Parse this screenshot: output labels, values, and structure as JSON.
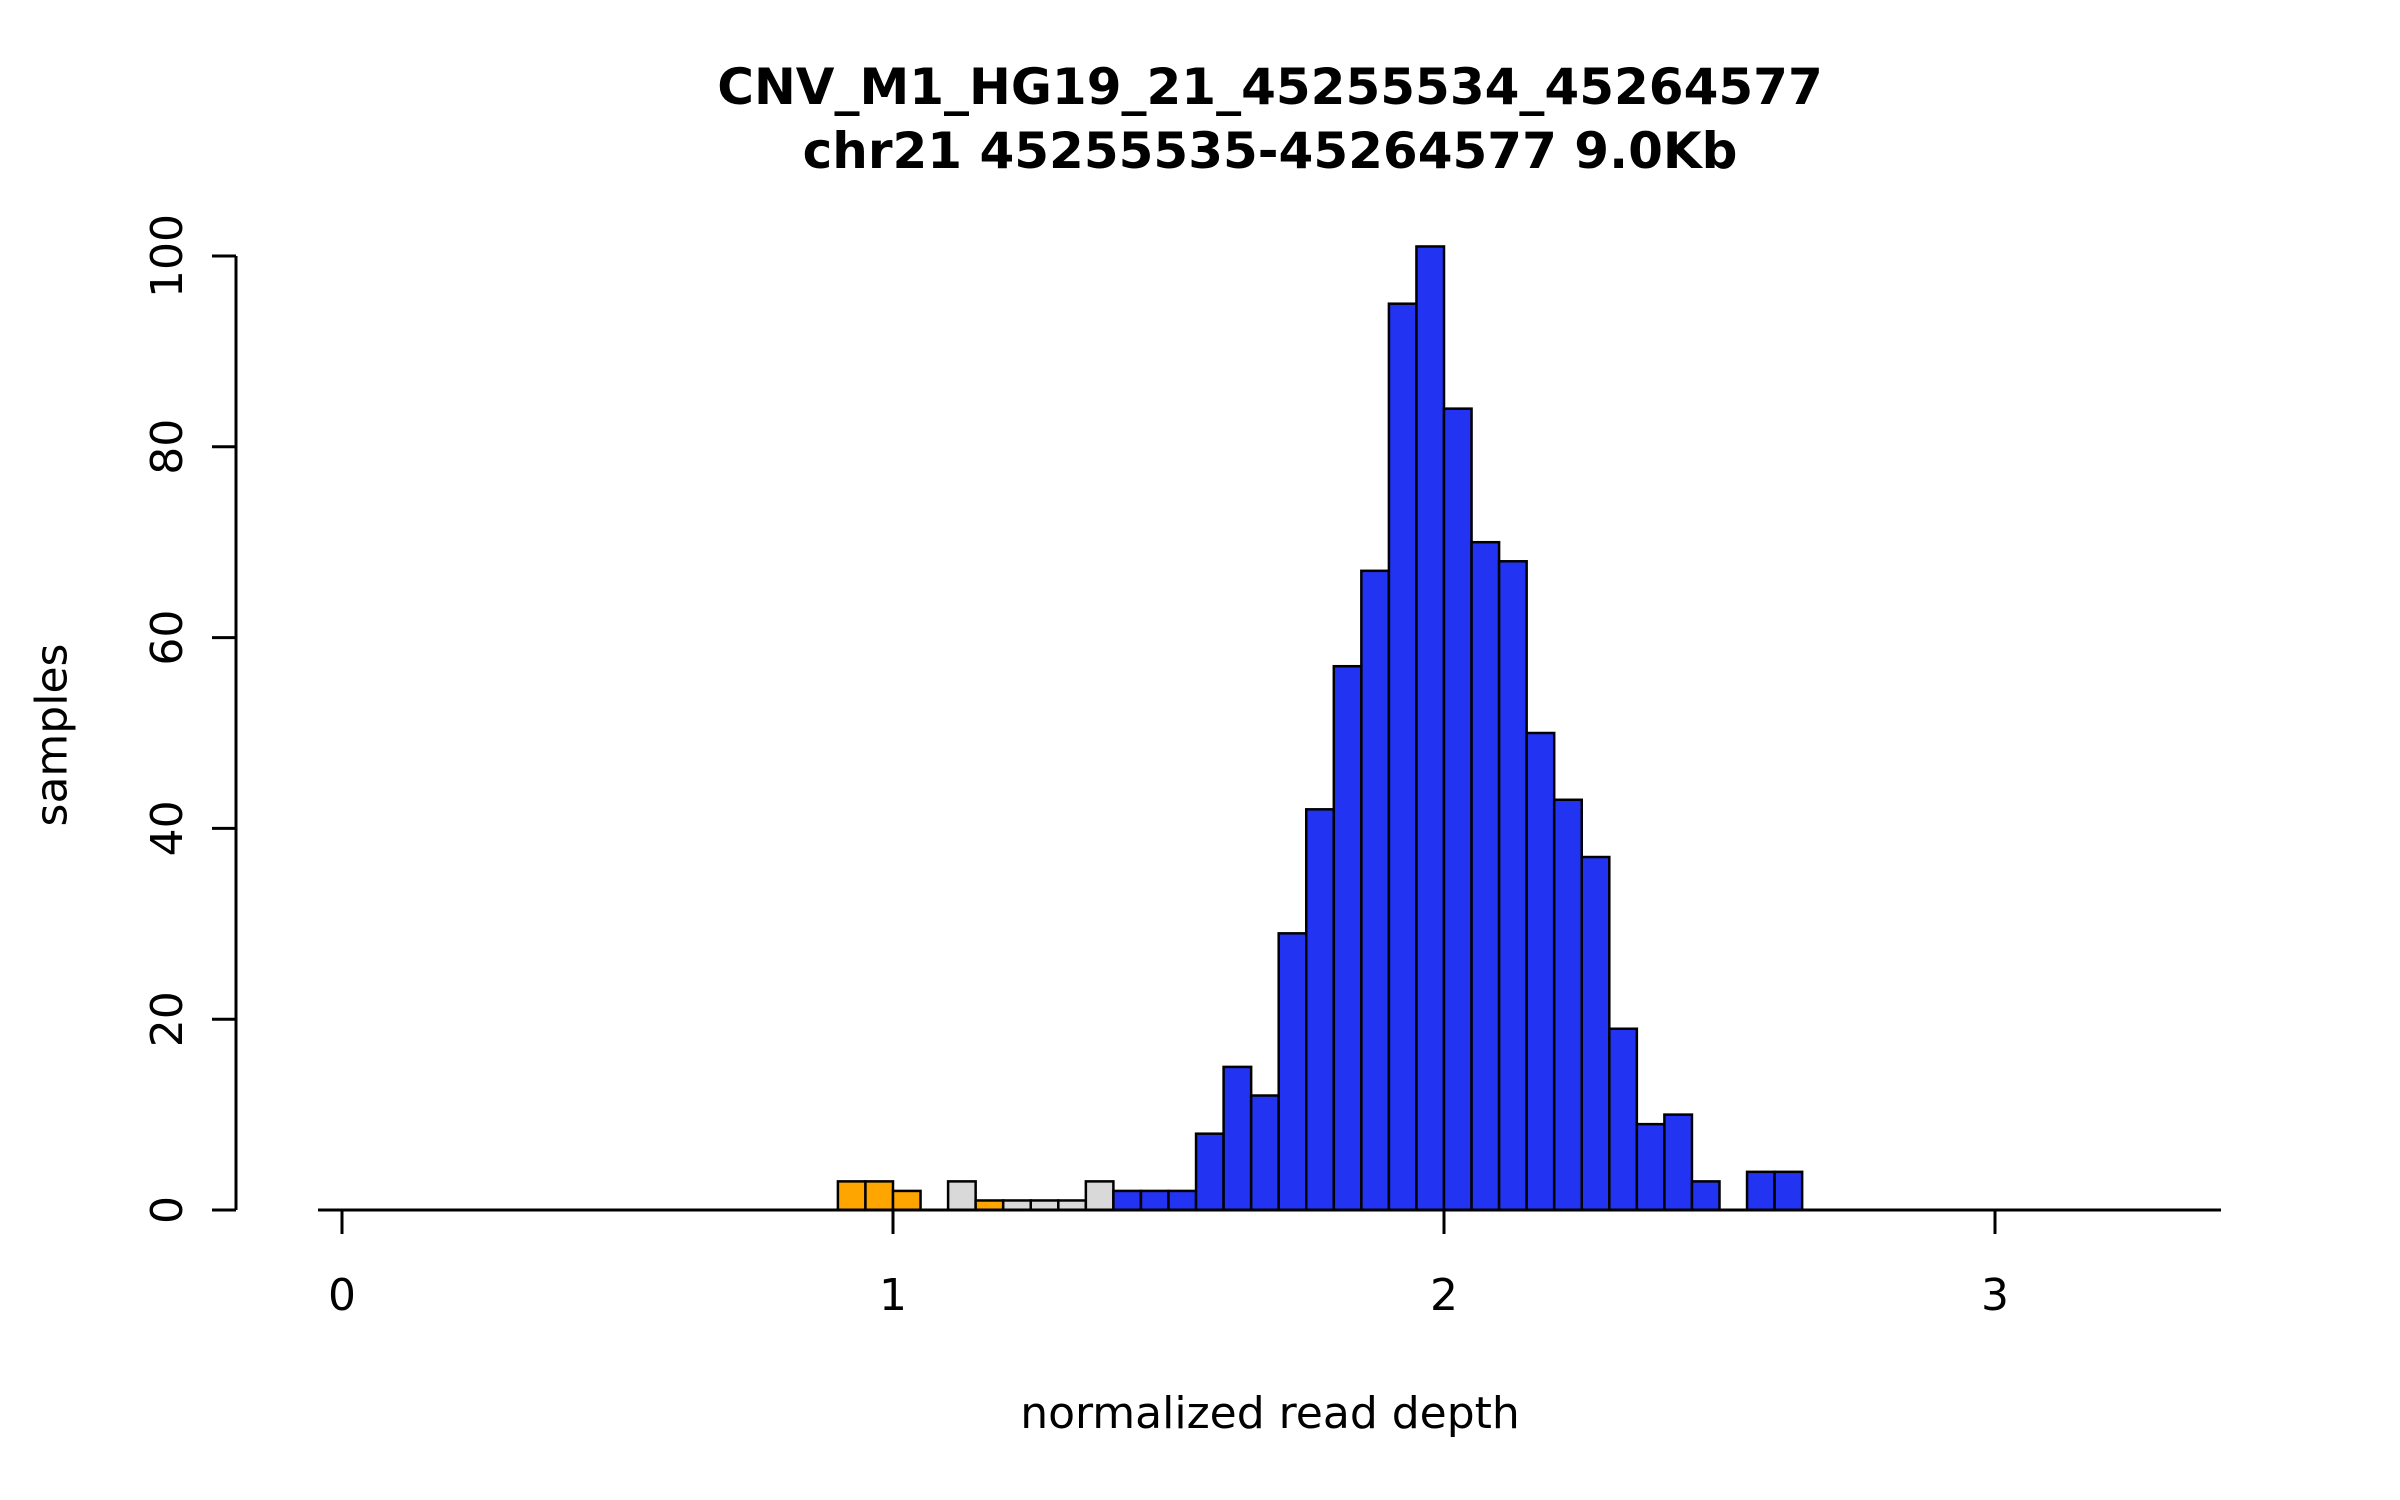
{
  "title": {
    "line1": "CNV_M1_HG19_21_45255534_45264577",
    "line2": "chr21 45255535-45264577 9.0Kb"
  },
  "chart_data": {
    "type": "bar",
    "subtype": "histogram",
    "title": "CNV_M1_HG19_21_45255534_45264577",
    "subtitle": "chr21 45255535-45264577 9.0Kb",
    "xlabel": "normalized read depth",
    "ylabel": "samples",
    "x_ticks": [
      0,
      1,
      2,
      3
    ],
    "y_ticks": [
      0,
      20,
      40,
      60,
      80,
      100
    ],
    "xlim": [
      -0.05,
      3.45
    ],
    "ylim": [
      0,
      101
    ],
    "bin_width": 0.05,
    "grid": false,
    "legend": "none",
    "colors": {
      "blue": "#2233F2",
      "orange": "#FFA500",
      "gray": "#D9D9D9",
      "axis": "#000000"
    },
    "bars": [
      {
        "x": 0.9,
        "h": 3,
        "c": "orange"
      },
      {
        "x": 0.95,
        "h": 3,
        "c": "orange"
      },
      {
        "x": 1.0,
        "h": 2,
        "c": "orange"
      },
      {
        "x": 1.1,
        "h": 3,
        "c": "gray"
      },
      {
        "x": 1.15,
        "h": 1,
        "c": "orange"
      },
      {
        "x": 1.2,
        "h": 1,
        "c": "gray"
      },
      {
        "x": 1.25,
        "h": 1,
        "c": "gray"
      },
      {
        "x": 1.3,
        "h": 1,
        "c": "gray"
      },
      {
        "x": 1.35,
        "h": 3,
        "c": "gray"
      },
      {
        "x": 1.4,
        "h": 2,
        "c": "blue"
      },
      {
        "x": 1.45,
        "h": 2,
        "c": "blue"
      },
      {
        "x": 1.5,
        "h": 2,
        "c": "blue"
      },
      {
        "x": 1.55,
        "h": 8,
        "c": "blue"
      },
      {
        "x": 1.6,
        "h": 15,
        "c": "blue"
      },
      {
        "x": 1.65,
        "h": 12,
        "c": "blue"
      },
      {
        "x": 1.7,
        "h": 29,
        "c": "blue"
      },
      {
        "x": 1.75,
        "h": 42,
        "c": "blue"
      },
      {
        "x": 1.8,
        "h": 57,
        "c": "blue"
      },
      {
        "x": 1.85,
        "h": 67,
        "c": "blue"
      },
      {
        "x": 1.9,
        "h": 95,
        "c": "blue"
      },
      {
        "x": 1.95,
        "h": 101,
        "c": "blue"
      },
      {
        "x": 2.0,
        "h": 84,
        "c": "blue"
      },
      {
        "x": 2.05,
        "h": 70,
        "c": "blue"
      },
      {
        "x": 2.1,
        "h": 68,
        "c": "blue"
      },
      {
        "x": 2.15,
        "h": 50,
        "c": "blue"
      },
      {
        "x": 2.2,
        "h": 43,
        "c": "blue"
      },
      {
        "x": 2.25,
        "h": 37,
        "c": "blue"
      },
      {
        "x": 2.3,
        "h": 19,
        "c": "blue"
      },
      {
        "x": 2.35,
        "h": 9,
        "c": "blue"
      },
      {
        "x": 2.4,
        "h": 10,
        "c": "blue"
      },
      {
        "x": 2.45,
        "h": 3,
        "c": "blue"
      },
      {
        "x": 2.55,
        "h": 4,
        "c": "blue"
      },
      {
        "x": 2.6,
        "h": 4,
        "c": "blue"
      }
    ]
  }
}
